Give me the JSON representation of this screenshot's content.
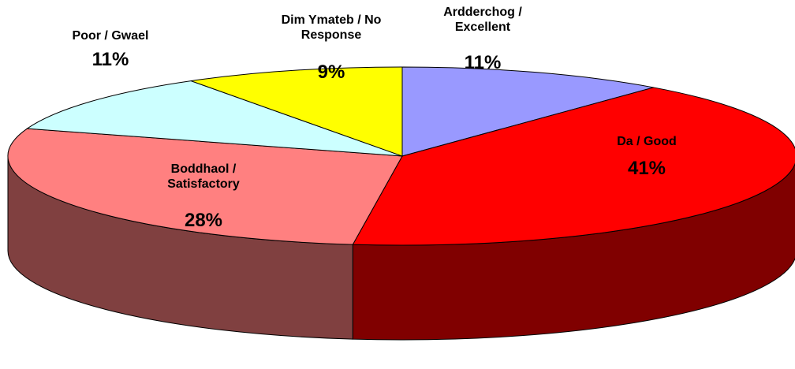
{
  "chart_data": {
    "type": "pie",
    "categories": [
      "Ardderchog / Excellent",
      "Da / Good",
      "Boddhaol / Satisfactory",
      "Poor / Gwael",
      "Dim Ymateb / No Response"
    ],
    "values": [
      11,
      41,
      28,
      11,
      9
    ],
    "value_labels": [
      "11%",
      "41%",
      "28%",
      "11%",
      "9%"
    ],
    "colors": [
      "#9999ff",
      "#ff0000",
      "#ff8080",
      "#ccffff",
      "#ffff00"
    ]
  }
}
